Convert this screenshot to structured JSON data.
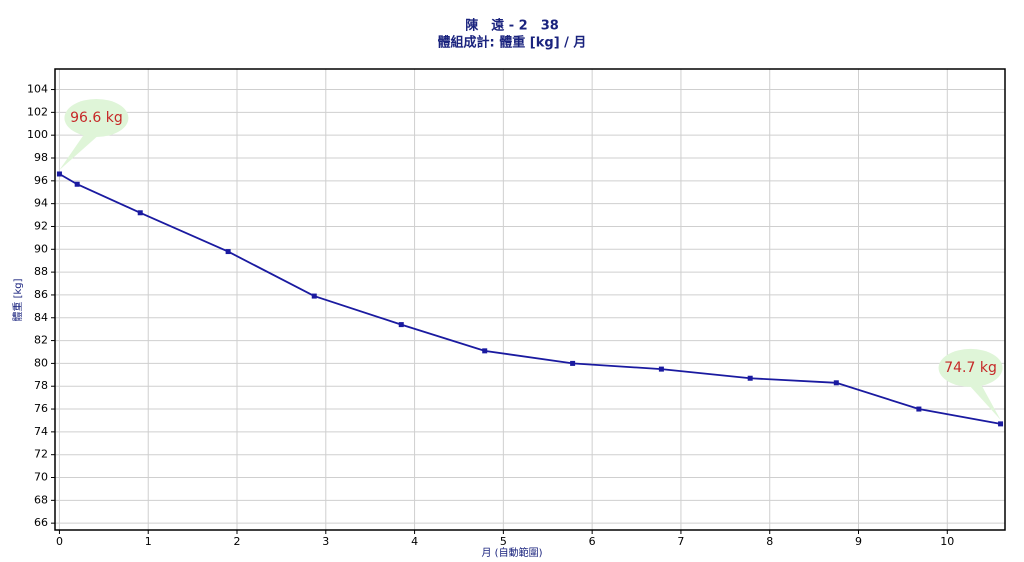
{
  "chart_data": {
    "type": "line",
    "title": "陳　遠 - 2　38",
    "subtitle": "體組成計: 體重 [kg] / 月",
    "x_label": "月 (自動範圍)",
    "y_label": "體重 [kg]",
    "xlim": [
      -0.05,
      10.65
    ],
    "ylim": [
      65.4,
      105.8
    ],
    "xticks": [
      0,
      1,
      2,
      3,
      4,
      5,
      6,
      7,
      8,
      9,
      10
    ],
    "yticks": [
      66,
      68,
      70,
      72,
      74,
      76,
      78,
      80,
      82,
      84,
      86,
      88,
      90,
      92,
      94,
      96,
      98,
      100,
      102,
      104
    ],
    "grid": true,
    "series": [
      {
        "name": "體重",
        "color": "#1a1aa0",
        "x": [
          0,
          0.2,
          0.91,
          1.9,
          2.87,
          3.85,
          4.79,
          5.78,
          6.78,
          7.78,
          8.75,
          9.68,
          10.6
        ],
        "values": [
          96.6,
          95.7,
          93.2,
          89.8,
          85.9,
          83.4,
          81.1,
          80.0,
          79.5,
          78.7,
          78.3,
          76.0,
          74.7
        ],
        "value_labels": [
          "96.6 kg",
          null,
          null,
          null,
          null,
          null,
          null,
          null,
          null,
          null,
          null,
          null,
          "74.7 kg"
        ]
      }
    ]
  }
}
